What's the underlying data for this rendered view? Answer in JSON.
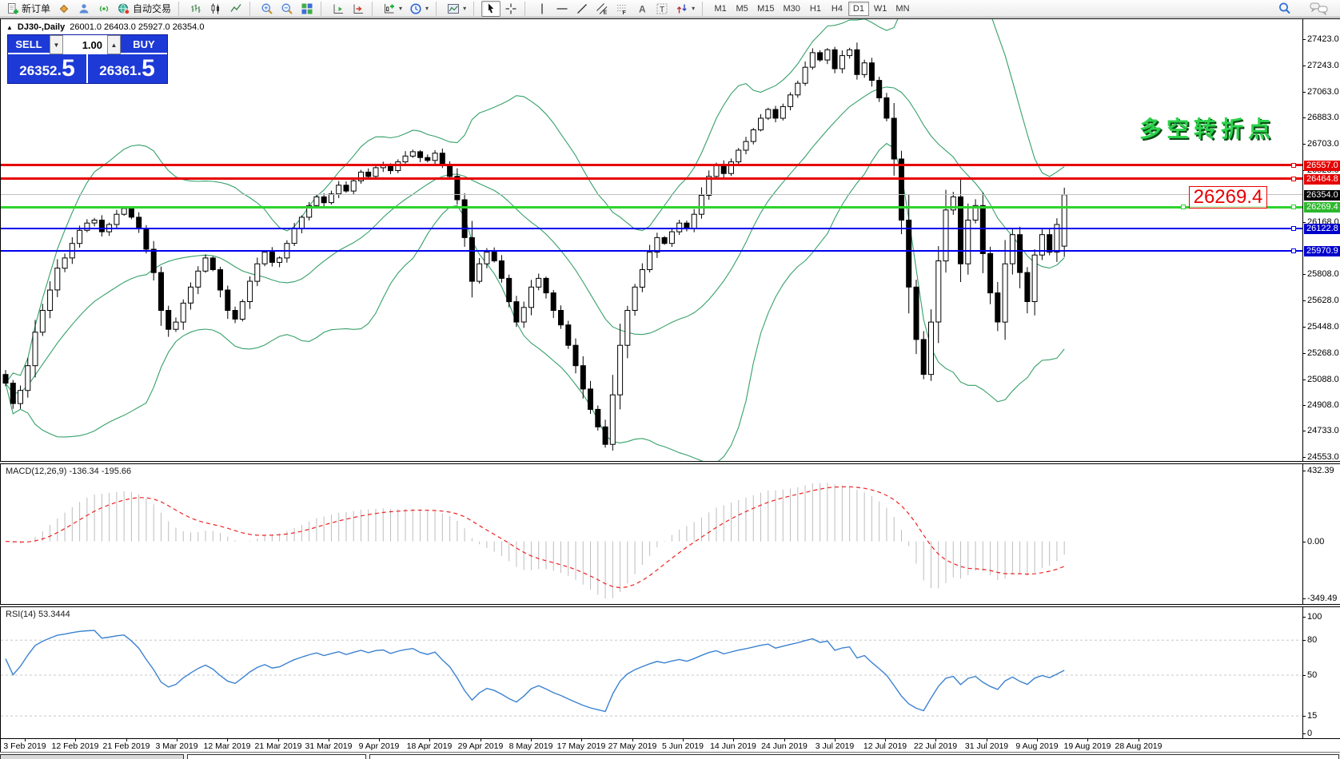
{
  "toolbar": {
    "items": [
      {
        "name": "new-order",
        "icon": "doc-plus",
        "label": "新订单"
      },
      {
        "name": "styles",
        "icon": "diamond"
      },
      {
        "name": "profiles",
        "icon": "person"
      },
      {
        "name": "signals",
        "icon": "signal"
      },
      {
        "name": "auto-trading",
        "icon": "globe",
        "label": "自动交易"
      },
      {
        "sep": true
      },
      {
        "name": "bar-chart",
        "icon": "bars"
      },
      {
        "name": "candlestick-chart",
        "icon": "candles"
      },
      {
        "name": "line-chart",
        "icon": "linechart"
      },
      {
        "sep": true
      },
      {
        "name": "zoom-in",
        "icon": "zoom-in"
      },
      {
        "name": "zoom-out",
        "icon": "zoom-out"
      },
      {
        "name": "tile-windows",
        "icon": "tile"
      },
      {
        "sep": true
      },
      {
        "name": "auto-scroll",
        "icon": "autoscroll"
      },
      {
        "name": "chart-shift",
        "icon": "shift"
      },
      {
        "sep": true
      },
      {
        "name": "new-chart",
        "icon": "chart-plus",
        "caret": true
      },
      {
        "name": "periods",
        "icon": "clock",
        "caret": true
      },
      {
        "sep": true
      },
      {
        "name": "templates",
        "icon": "template",
        "caret": true
      },
      {
        "sep": true
      },
      {
        "name": "cursor",
        "icon": "cursor",
        "active": true
      },
      {
        "name": "crosshair",
        "icon": "crosshair"
      },
      {
        "sep": true
      },
      {
        "name": "vertical-line",
        "icon": "vline"
      },
      {
        "name": "horizontal-line",
        "icon": "hline"
      },
      {
        "name": "trendline",
        "icon": "tline"
      },
      {
        "name": "equidistant-channel",
        "icon": "channel"
      },
      {
        "name": "fibonacci",
        "icon": "fibo"
      },
      {
        "name": "text",
        "icon": "text-a"
      },
      {
        "name": "text-label",
        "icon": "text-t"
      },
      {
        "name": "arrows",
        "icon": "arrows",
        "caret": true
      },
      {
        "sep": true
      }
    ],
    "timeframes": [
      "M1",
      "M5",
      "M15",
      "M30",
      "H1",
      "H4",
      "D1",
      "W1",
      "MN"
    ],
    "active_timeframe": "D1"
  },
  "chart": {
    "symbol_caret": "▲",
    "symbol_header": "DJ30-,Daily",
    "ohlc_text": "26001.0 26403.0 25927.0 26354.0",
    "annotation_text": "多空转折点",
    "annotation_price": "26269.4",
    "annotation_color": "#2bd24b",
    "annotation_price_color": "#e80000"
  },
  "trade_panel": {
    "sell_label": "SELL",
    "buy_label": "BUY",
    "volume": "1.00",
    "spinner_down": "▼",
    "spinner_up": "▲",
    "sell_price_main": "26352",
    "sell_price_dot": ".",
    "sell_price_big": "5",
    "buy_price_main": "26361",
    "buy_price_dot": ".",
    "buy_price_big": "5",
    "panel_color": "#1d3ad6"
  },
  "macd": {
    "label": "MACD(12,26,9) -136.34 -195.66",
    "axis_ticks": [
      "432.39",
      "0.00",
      "-349.49"
    ]
  },
  "rsi": {
    "label": "RSI(14) 53.3444",
    "axis_ticks": [
      "100",
      "80",
      "50",
      "15",
      "0"
    ]
  },
  "price_axis": {
    "ticks": [
      "27423.0",
      "27243.0",
      "27063.0",
      "26883.0",
      "26703.0",
      "26523.0",
      "26168.0",
      "25808.0",
      "25628.0",
      "25448.0",
      "25268.0",
      "25088.0",
      "24908.0",
      "24733.0",
      "24553.0"
    ]
  },
  "levels": [
    {
      "price": 26557.0,
      "label": "26557.0",
      "color": "#e60000",
      "badge_bg": "#e60000",
      "thickness": 3
    },
    {
      "price": 26464.8,
      "label": "26464.8",
      "color": "#e60000",
      "badge_bg": "#e60000",
      "thickness": 3
    },
    {
      "price": 26354.0,
      "label": "26354.0",
      "color": "#c0c0c0",
      "badge_bg": "#000000",
      "thickness": 1,
      "current": true
    },
    {
      "price": 26269.4,
      "label": "26269.4",
      "color": "#2fd32f",
      "badge_bg": "#2db82d",
      "thickness": 3,
      "annotated": true
    },
    {
      "price": 26122.8,
      "label": "26122.8",
      "color": "#0000ee",
      "badge_bg": "#0000cc",
      "thickness": 2
    },
    {
      "price": 25970.9,
      "label": "25970.9",
      "color": "#0000ee",
      "badge_bg": "#0000cc",
      "thickness": 2
    }
  ],
  "chart_data": {
    "type": "candlestick",
    "symbol": "DJ30-",
    "timeframe": "Daily",
    "last_ohlc": {
      "open": 26001.0,
      "high": 26403.0,
      "low": 25927.0,
      "close": 26354.0
    },
    "y_range": [
      24553,
      27423
    ],
    "closes": [
      25060,
      24920,
      25010,
      25180,
      25410,
      25560,
      25700,
      25850,
      25920,
      26020,
      26110,
      26160,
      26180,
      26100,
      26150,
      26220,
      26260,
      26200,
      26120,
      25980,
      25820,
      25560,
      25430,
      25480,
      25610,
      25720,
      25830,
      25920,
      25840,
      25700,
      25560,
      25500,
      25620,
      25760,
      25880,
      25960,
      25890,
      25920,
      26020,
      26120,
      26200,
      26280,
      26340,
      26300,
      26360,
      26420,
      26380,
      26450,
      26510,
      26480,
      26540,
      26560,
      26520,
      26580,
      26620,
      26650,
      26610,
      26590,
      26640,
      26560,
      26480,
      26320,
      26060,
      25760,
      25880,
      25960,
      25900,
      25780,
      25620,
      25480,
      25580,
      25720,
      25780,
      25680,
      25560,
      25460,
      25320,
      25180,
      25020,
      24880,
      24760,
      24640,
      24980,
      25320,
      25560,
      25720,
      25840,
      25960,
      26060,
      26020,
      26100,
      26160,
      26120,
      26220,
      26350,
      26480,
      26560,
      26500,
      26580,
      26660,
      26720,
      26800,
      26880,
      26940,
      26880,
      26960,
      27040,
      27120,
      27230,
      27330,
      27280,
      27350,
      27220,
      27310,
      27350,
      27180,
      27260,
      27140,
      27020,
      26880,
      26600,
      26180,
      25720,
      25360,
      25120,
      25480,
      25900,
      26250,
      26340,
      25880,
      26180,
      26280,
      25950,
      25680,
      25480,
      25880,
      26080,
      25820,
      25620,
      25940,
      26080,
      25960,
      26150,
      26354
    ],
    "x_labels": [
      "3 Feb 2019",
      "12 Feb 2019",
      "21 Feb 2019",
      "3 Mar 2019",
      "12 Mar 2019",
      "21 Mar 2019",
      "31 Mar 2019",
      "9 Apr 2019",
      "18 Apr 2019",
      "29 Apr 2019",
      "8 May 2019",
      "17 May 2019",
      "27 May 2019",
      "5 Jun 2019",
      "14 Jun 2019",
      "24 Jun 2019",
      "3 Jul 2019",
      "12 Jul 2019",
      "22 Jul 2019",
      "31 Jul 2019",
      "9 Aug 2019",
      "19 Aug 2019",
      "28 Aug 2019"
    ],
    "indicators": {
      "bollinger": {
        "period": 20,
        "deviation": 2,
        "color": "#36a06a"
      },
      "macd": {
        "fast": 12,
        "slow": 26,
        "signal": 9,
        "current_values": [
          -136.34,
          -195.66
        ],
        "axis_range": [
          -349.49,
          432.39
        ],
        "histogram_color": "#bdbdbd",
        "signal_color": "#ee2222"
      },
      "rsi": {
        "period": 14,
        "current_value": 53.3444,
        "levels": [
          80,
          50,
          15
        ],
        "axis_range": [
          0,
          100
        ],
        "line_color": "#3b82d0"
      }
    }
  }
}
